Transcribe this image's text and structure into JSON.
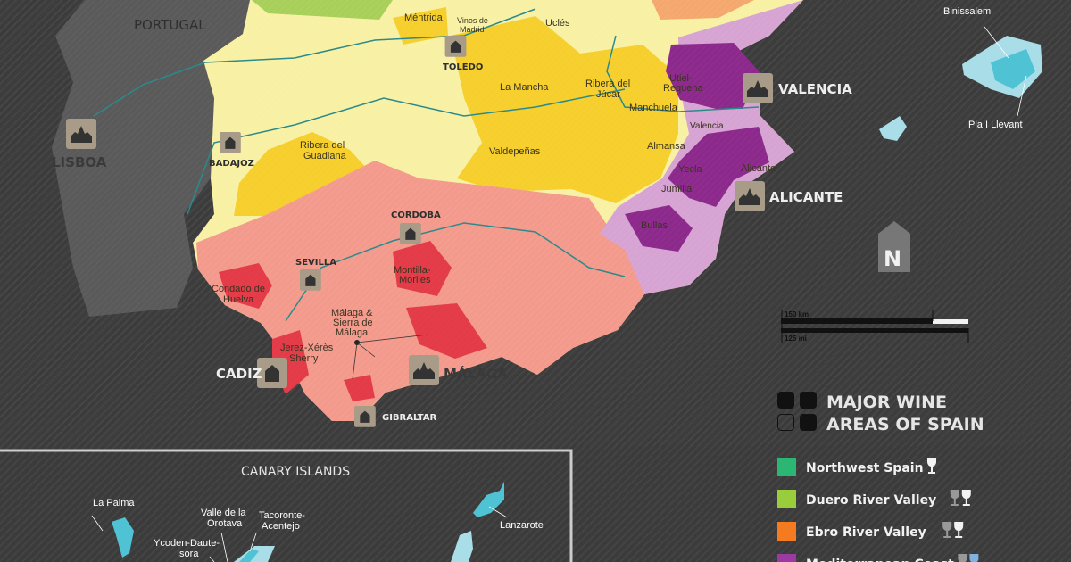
{
  "map": {
    "country_label": "PORTUGAL",
    "regions": {
      "mentrida": "Méntrida",
      "vinos_de_madrid": [
        "Vinos de",
        "Madrid"
      ],
      "ucles": "Uclés",
      "la_mancha": "La Mancha",
      "ribera_del_jucar": [
        "Ribera del",
        "Júcar"
      ],
      "manchuela": "Manchuela",
      "utiel_requena": [
        "Utiel-",
        "Requena"
      ],
      "valencia": "Valencia",
      "almansa": "Almansa",
      "yecla": "Yecla",
      "alicante": "Alicante",
      "jumilla": "Jumilla",
      "bullas": "Bullas",
      "valdepenas": "Valdepeñas",
      "ribera_del_guadiana": [
        "Ribera del",
        "Guadiana"
      ],
      "condado_de_huelva": [
        "Condado de",
        "Huelva"
      ],
      "montilla_moriles": [
        "Montilla-",
        "Moriles"
      ],
      "malaga_sierra": [
        "Málaga &",
        "Sierra de",
        "Málaga"
      ],
      "jerez": [
        "Jerez-Xérès",
        "Sherry"
      ],
      "binissalem": "Binissalem",
      "pla_i_llevant": "Pla I Llevant"
    },
    "cities": {
      "toledo": "TOLEDO",
      "valencia": "VALENCIA",
      "alicante": "ALICANTE",
      "lisboa": "LISBOA",
      "badajoz": "BADAJOZ",
      "cordoba": "CORDOBA",
      "sevilla": "SEVILLA",
      "cadiz": "CADIZ",
      "malaga": "MÁLAGA",
      "gibraltar": "GIBRALTAR"
    },
    "north_label": "N",
    "scale": {
      "km": "150 km",
      "mi": "125 mi"
    }
  },
  "canary": {
    "title": "CANARY ISLANDS",
    "regions": {
      "la_palma": "La Palma",
      "valle_orotava": [
        "Valle de la",
        "Orotava"
      ],
      "tacoronte": [
        "Tacoronte-",
        "Acentejo"
      ],
      "ycoden": [
        "Ycoden-Daute-",
        "Isora"
      ],
      "lanzarote": "Lanzarote"
    }
  },
  "legend": {
    "title": [
      "MAJOR WINE",
      "AREAS OF SPAIN"
    ],
    "items": [
      {
        "label": "Northwest Spain",
        "color": "#2bb673",
        "glasses": [
          "white"
        ]
      },
      {
        "label": "Duero River Valley",
        "color": "#9acd3c",
        "glasses": [
          "gray",
          "white"
        ]
      },
      {
        "label": "Ebro River Valley",
        "color": "#f47b20",
        "glasses": [
          "gray",
          "white"
        ]
      },
      {
        "label": "Mediterranean Coast",
        "color": "#9b3aa0",
        "glasses": [
          "gray",
          "blue"
        ]
      }
    ]
  },
  "colors": {
    "background": "#3b3b3b",
    "portugal": "#5a5a5a",
    "spain_base": "#f8f1a4",
    "central_regions": "#f6cf2e",
    "andalusia": "#f39a8c",
    "andalusia_regions": "#e33b48",
    "levante": "#d6a3d3",
    "levante_regions": "#8c2a8c",
    "islands": "#4fc3d4",
    "river": "#2b8a8c",
    "city_marker": "#a89b87"
  }
}
